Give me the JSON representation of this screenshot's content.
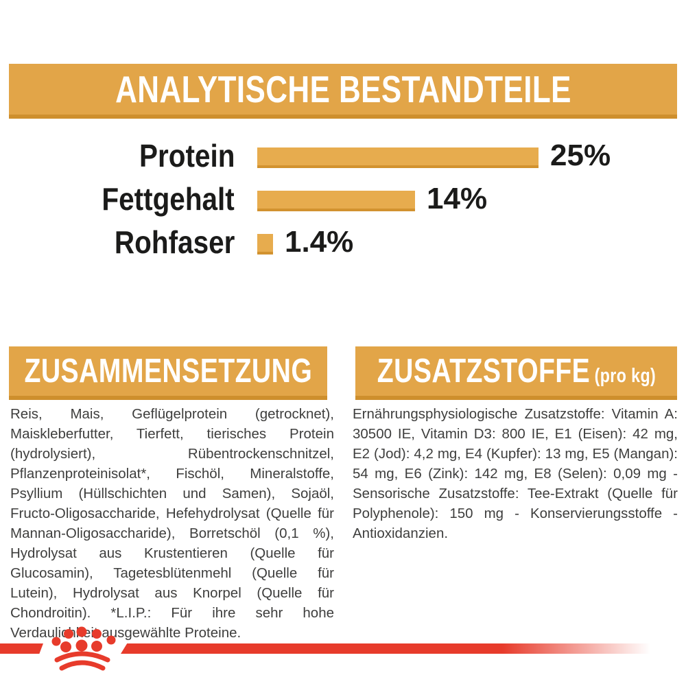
{
  "colors": {
    "gold": "#E2A548",
    "gold_shadow": "#CE8F2D",
    "bar_gold": "#E7AC4E",
    "brand_red": "#E73B2B",
    "label_black": "#1B1B1A",
    "body_text": "#3E3E3D",
    "banner_text": "#FFFFFF",
    "background": "#FFFFFF"
  },
  "header": {
    "title": "ANALYTISCHE BESTANDTEILE"
  },
  "chart_data": {
    "type": "bar",
    "orientation": "horizontal",
    "title": "ANALYTISCHE BESTANDTEILE",
    "categories": [
      "Protein",
      "Fettgehalt",
      "Rohfaser"
    ],
    "values": [
      25,
      14,
      1.4
    ],
    "value_labels": [
      "25%",
      "14%",
      "1.4%"
    ],
    "unit": "%",
    "xlim": [
      0,
      25
    ],
    "grid": false,
    "legend": false,
    "bar_color": "#E7AC4E"
  },
  "sections": {
    "composition": {
      "title": "ZUSAMMENSETZUNG",
      "body": "Reis, Mais, Geflügelprotein (getrocknet), Maiskleberfutter, Tierfett, tierisches Protein (hydrolysiert), Rübentrockenschnitzel, Pflanzenproteinisolat*, Fischöl, Mineralstoffe, Psyllium (Hüllschichten und Samen), Sojaöl, Fructo-Oligosaccharide, Hefehydrolysat (Quelle für Mannan-Oligosaccharide), Borretschöl (0,1 %), Hydrolysat aus Krustentieren (Quelle für Glucosamin), Tagetesblütenmehl (Quelle für Lutein), Hydrolysat aus Knorpel (Quelle für Chondroitin). *L.I.P.: Für ihre sehr hohe Verdaulichkeit ausgewählte Proteine."
    },
    "additives": {
      "title": "ZUSATZSTOFFE",
      "title_suffix": "(pro kg)",
      "body": "Ernährungsphysiologische Zusatzstoffe: Vitamin A: 30500 IE, Vitamin D3: 800 IE, E1 (Eisen): 42 mg, E2 (Jod): 4,2 mg, E4 (Kupfer): 13 mg, E5 (Mangan): 54 mg, E6 (Zink): 142 mg, E8 (Selen): 0,09 mg - Sensorische Zusatzstoffe: Tee-Extrakt (Quelle für Polyphenole): 150 mg - Konservierungsstoffe - Antioxidanzien."
    }
  },
  "footer": {
    "brand_mark": "royal-canin-crown-paw-logo"
  }
}
